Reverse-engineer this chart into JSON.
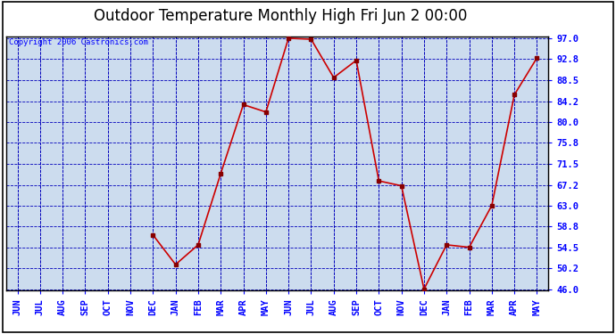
{
  "title": "Outdoor Temperature Monthly High Fri Jun 2 00:00",
  "copyright": "Copyright 2006 Castronics.com",
  "x_labels": [
    "JUN",
    "JUL",
    "AUG",
    "SEP",
    "OCT",
    "NOV",
    "DEC",
    "JAN",
    "FEB",
    "MAR",
    "APR",
    "MAY",
    "JUN",
    "JUL",
    "AUG",
    "SEP",
    "OCT",
    "NOV",
    "DEC",
    "JAN",
    "FEB",
    "MAR",
    "APR",
    "MAY"
  ],
  "y_values": [
    null,
    null,
    null,
    null,
    null,
    null,
    57.0,
    51.0,
    55.0,
    69.5,
    83.5,
    82.0,
    97.0,
    96.8,
    89.0,
    92.5,
    68.0,
    67.0,
    46.0,
    55.0,
    54.5,
    63.0,
    85.5,
    93.0
  ],
  "ylim_min": 46.0,
  "ylim_max": 97.0,
  "yticks": [
    46.0,
    50.2,
    54.5,
    58.8,
    63.0,
    67.2,
    71.5,
    75.8,
    80.0,
    84.2,
    88.5,
    92.8,
    97.0
  ],
  "line_color": "#cc0000",
  "marker_color": "#880000",
  "plot_bg_color": "#ccdcee",
  "fig_bg_color": "#ffffff",
  "grid_color": "#0000bb",
  "border_color": "#000000",
  "title_fontsize": 12,
  "copyright_fontsize": 6.5,
  "tick_fontsize": 7.5
}
